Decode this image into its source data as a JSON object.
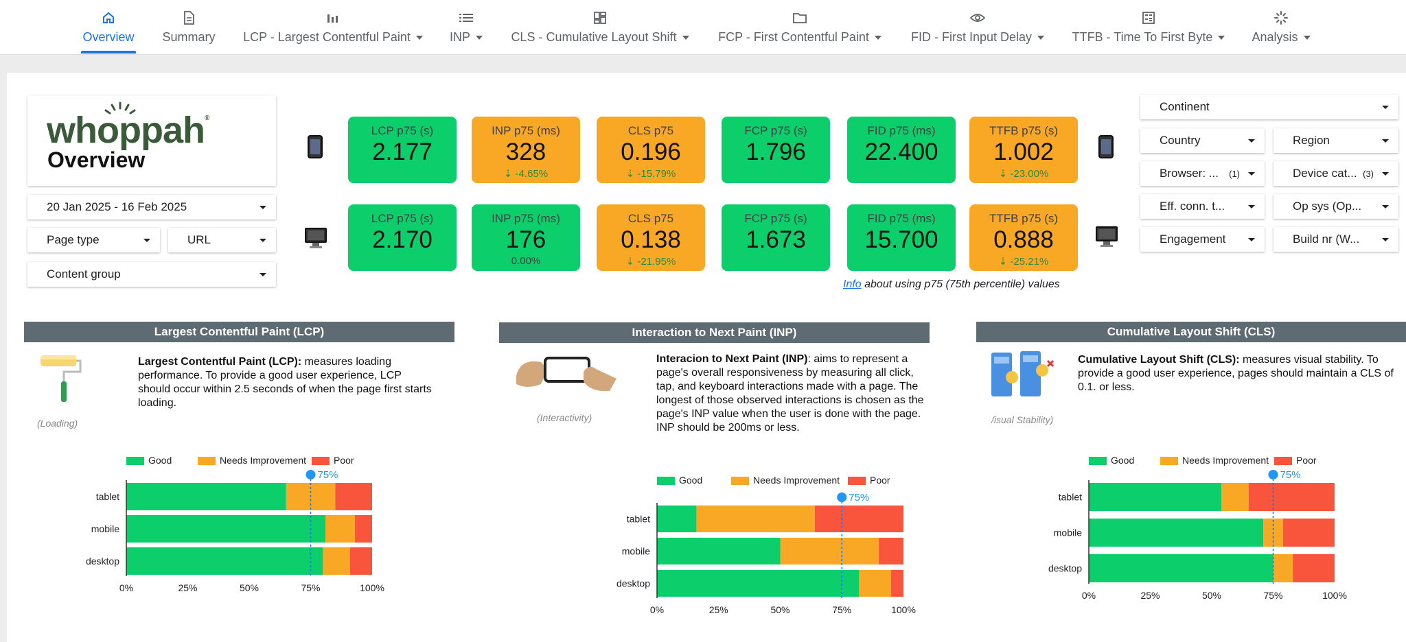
{
  "nav": {
    "tabs": [
      {
        "label": "Overview",
        "icon": "home-icon",
        "caret": false
      },
      {
        "label": "Summary",
        "icon": "document-icon",
        "caret": false
      },
      {
        "label": "LCP - Largest Contentful Paint",
        "icon": "bar-chart-icon",
        "caret": true
      },
      {
        "label": "INP",
        "icon": "list-icon",
        "caret": true
      },
      {
        "label": "CLS - Cumulative Layout Shift",
        "icon": "dashboard-icon",
        "caret": true
      },
      {
        "label": "FCP - First Contentful Paint",
        "icon": "folder-icon",
        "caret": true
      },
      {
        "label": "FID - First Input Delay",
        "icon": "eye-icon",
        "caret": true
      },
      {
        "label": "TTFB - Time To First Byte",
        "icon": "calculator-icon",
        "caret": true
      },
      {
        "label": "Analysis",
        "icon": "loading-spinner-icon",
        "caret": true
      }
    ],
    "active_index": 0
  },
  "brand": {
    "logo_text": "whoppah",
    "logo_mark": "®",
    "page_title": "Overview",
    "logo_color": "#3a5a3a"
  },
  "filters": {
    "date_range": "20 Jan 2025 - 16 Feb 2025",
    "page_type": "Page type",
    "url": "URL",
    "content_group": "Content group",
    "continent": "Continent",
    "country": "Country",
    "region": "Region",
    "browser": "Browser: ...",
    "browser_count": "(1)",
    "device_category": "Device cat...",
    "device_count": "(3)",
    "eff_conn": "Eff. conn. t...",
    "op_sys": "Op sys (Op...",
    "engagement": "Engagement",
    "build_nr": "Build nr (W..."
  },
  "kpis": {
    "mobile": [
      {
        "label": "LCP p75 (s)",
        "value": "2.177",
        "delta": "",
        "status": "good"
      },
      {
        "label": "INP p75 (ms)",
        "value": "328",
        "delta": "⇣ -4.65%",
        "status": "ni"
      },
      {
        "label": "CLS p75",
        "value": "0.196",
        "delta": "⇣ -15.79%",
        "status": "ni"
      },
      {
        "label": "FCP p75 (s)",
        "value": "1.796",
        "delta": "",
        "status": "good"
      },
      {
        "label": "FID p75 (ms)",
        "value": "22.400",
        "delta": "",
        "status": "good"
      },
      {
        "label": "TTFB p75 (s)",
        "value": "1.002",
        "delta": "⇣ -23.00%",
        "status": "ni"
      }
    ],
    "desktop": [
      {
        "label": "LCP p75 (s)",
        "value": "2.170",
        "delta": "",
        "status": "good"
      },
      {
        "label": "INP p75 (ms)",
        "value": "176",
        "delta": "0.00%",
        "status": "good"
      },
      {
        "label": "CLS p75",
        "value": "0.138",
        "delta": "⇣ -21.95%",
        "status": "ni"
      },
      {
        "label": "FCP p75 (s)",
        "value": "1.673",
        "delta": "",
        "status": "good"
      },
      {
        "label": "FID p75 (ms)",
        "value": "15.700",
        "delta": "",
        "status": "good"
      },
      {
        "label": "TTFB p75 (s)",
        "value": "0.888",
        "delta": "⇣ -25.21%",
        "status": "ni"
      }
    ]
  },
  "info_note": {
    "link": "Info",
    "text": " about using p75 (75th percentile) values"
  },
  "sections": [
    {
      "title": "Largest Contentful Paint (LCP)",
      "term": "Largest Contentful Paint (LCP):",
      "body": " measures loading performance. To provide a good user experience, LCP should occur within 2.5 seconds of when the page first starts loading.",
      "caption": "(Loading)"
    },
    {
      "title": "Interaction to Next Paint (INP)",
      "term": "Interacion to Next Paint (INP)",
      "body": ": aims to represent a page's overall responsiveness by measuring all click, tap, and keyboard interactions made with a page. The longest of those observed interactions is chosen as the page's INP value when the user is done with the page. INP should be 200ms or less.",
      "caption": "(Interactivity)"
    },
    {
      "title": "Cumulative Layout Shift (CLS)",
      "term": "Cumulative Layout Shift (CLS):",
      "body": " measures visual stability. To provide a good user experience, pages should maintain a CLS of 0.1. or less.",
      "caption": "/isual Stability)"
    }
  ],
  "colors": {
    "good": "#0cce6b",
    "needs_improvement": "#f9a825",
    "poor": "#f9553c",
    "marker": "#1a73e8"
  },
  "chart_data": [
    {
      "type": "bar",
      "orientation": "horizontal-stacked-100",
      "categories": [
        "tablet",
        "mobile",
        "desktop"
      ],
      "series": [
        {
          "name": "Good",
          "values": [
            65,
            81,
            80
          ]
        },
        {
          "name": "Needs Improvement",
          "values": [
            20,
            12,
            11
          ]
        },
        {
          "name": "Poor",
          "values": [
            15,
            7,
            9
          ]
        }
      ],
      "marker": {
        "value": 75,
        "label": "75%"
      },
      "xticks": [
        "0%",
        "25%",
        "50%",
        "75%",
        "100%"
      ],
      "legend": "top"
    },
    {
      "type": "bar",
      "orientation": "horizontal-stacked-100",
      "categories": [
        "tablet",
        "mobile",
        "desktop"
      ],
      "series": [
        {
          "name": "Good",
          "values": [
            16,
            50,
            82
          ]
        },
        {
          "name": "Needs Improvement",
          "values": [
            48,
            40,
            13
          ]
        },
        {
          "name": "Poor",
          "values": [
            36,
            10,
            5
          ]
        }
      ],
      "marker": {
        "value": 75,
        "label": "75%"
      },
      "xticks": [
        "0%",
        "25%",
        "50%",
        "75%",
        "100%"
      ],
      "legend": "top"
    },
    {
      "type": "bar",
      "orientation": "horizontal-stacked-100",
      "categories": [
        "tablet",
        "mobile",
        "desktop"
      ],
      "series": [
        {
          "name": "Good",
          "values": [
            54,
            71,
            75
          ]
        },
        {
          "name": "Needs Improvement",
          "values": [
            11,
            8,
            8
          ]
        },
        {
          "name": "Poor",
          "values": [
            35,
            21,
            17
          ]
        }
      ],
      "marker": {
        "value": 75,
        "label": "75%"
      },
      "xticks": [
        "0%",
        "25%",
        "50%",
        "75%",
        "100%"
      ],
      "legend": "top"
    }
  ]
}
